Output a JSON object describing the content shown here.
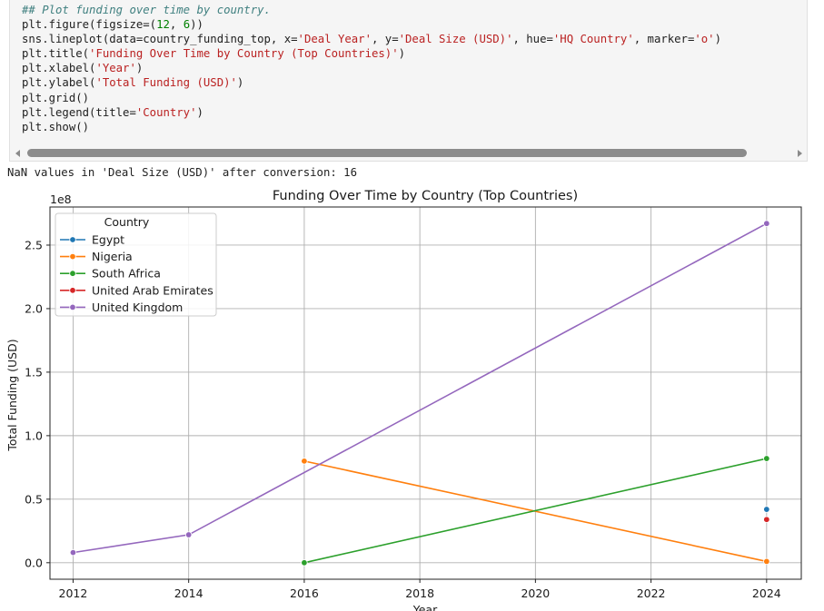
{
  "cell": {
    "code_lines": [
      [
        {
          "t": "## Plot funding over time by country.",
          "c": "cm"
        }
      ],
      [
        {
          "t": "plt.figure(figsize=(",
          "c": ""
        },
        {
          "t": "12",
          "c": "num"
        },
        {
          "t": ", ",
          "c": ""
        },
        {
          "t": "6",
          "c": "num"
        },
        {
          "t": "))",
          "c": ""
        }
      ],
      [
        {
          "t": "sns.lineplot(data=country_funding_top, x=",
          "c": ""
        },
        {
          "t": "'Deal Year'",
          "c": "str"
        },
        {
          "t": ", y=",
          "c": ""
        },
        {
          "t": "'Deal Size (USD)'",
          "c": "str"
        },
        {
          "t": ", hue=",
          "c": ""
        },
        {
          "t": "'HQ Country'",
          "c": "str"
        },
        {
          "t": ", marker=",
          "c": ""
        },
        {
          "t": "'o'",
          "c": "str"
        },
        {
          "t": ")",
          "c": ""
        }
      ],
      [
        {
          "t": "plt.title(",
          "c": ""
        },
        {
          "t": "'Funding Over Time by Country (Top Countries)'",
          "c": "str"
        },
        {
          "t": ")",
          "c": ""
        }
      ],
      [
        {
          "t": "plt.xlabel(",
          "c": ""
        },
        {
          "t": "'Year'",
          "c": "str"
        },
        {
          "t": ")",
          "c": ""
        }
      ],
      [
        {
          "t": "plt.ylabel(",
          "c": ""
        },
        {
          "t": "'Total Funding (USD)'",
          "c": "str"
        },
        {
          "t": ")",
          "c": ""
        }
      ],
      [
        {
          "t": "plt.grid()",
          "c": ""
        }
      ],
      [
        {
          "t": "plt.legend(title=",
          "c": ""
        },
        {
          "t": "'Country'",
          "c": "str"
        },
        {
          "t": ")",
          "c": ""
        }
      ],
      [
        {
          "t": "plt.show()",
          "c": ""
        }
      ]
    ]
  },
  "output": {
    "stdout": "NaN values in 'Deal Size (USD)' after conversion: 16"
  },
  "chart_data": {
    "type": "line",
    "title": "Funding Over Time by Country (Top Countries)",
    "xlabel": "Year",
    "ylabel": "Total Funding (USD)",
    "y_offset_label": "1e8",
    "xlim": [
      2011.6,
      2024.6
    ],
    "ylim": [
      -0.13,
      2.8
    ],
    "x_ticks": [
      2012,
      2014,
      2016,
      2018,
      2020,
      2022,
      2024
    ],
    "y_ticks": [
      0.0,
      0.5,
      1.0,
      1.5,
      2.0,
      2.5
    ],
    "y_tick_labels": [
      "0.0",
      "0.5",
      "1.0",
      "1.5",
      "2.0",
      "2.5"
    ],
    "grid": true,
    "legend_title": "Country",
    "legend_placement": "upper-left",
    "series": [
      {
        "name": "Egypt",
        "color": "#1f77b4",
        "points": [
          [
            2024,
            0.42
          ]
        ]
      },
      {
        "name": "Nigeria",
        "color": "#ff7f0e",
        "points": [
          [
            2016,
            0.8
          ],
          [
            2024,
            0.01
          ]
        ]
      },
      {
        "name": "South Africa",
        "color": "#2ca02c",
        "points": [
          [
            2016,
            0.0
          ],
          [
            2024,
            0.82
          ]
        ]
      },
      {
        "name": "United Arab Emirates",
        "color": "#d62728",
        "points": [
          [
            2024,
            0.34
          ]
        ]
      },
      {
        "name": "United Kingdom",
        "color": "#9467bd",
        "points": [
          [
            2012,
            0.08
          ],
          [
            2014,
            0.22
          ],
          [
            2024,
            2.67
          ]
        ]
      }
    ]
  }
}
